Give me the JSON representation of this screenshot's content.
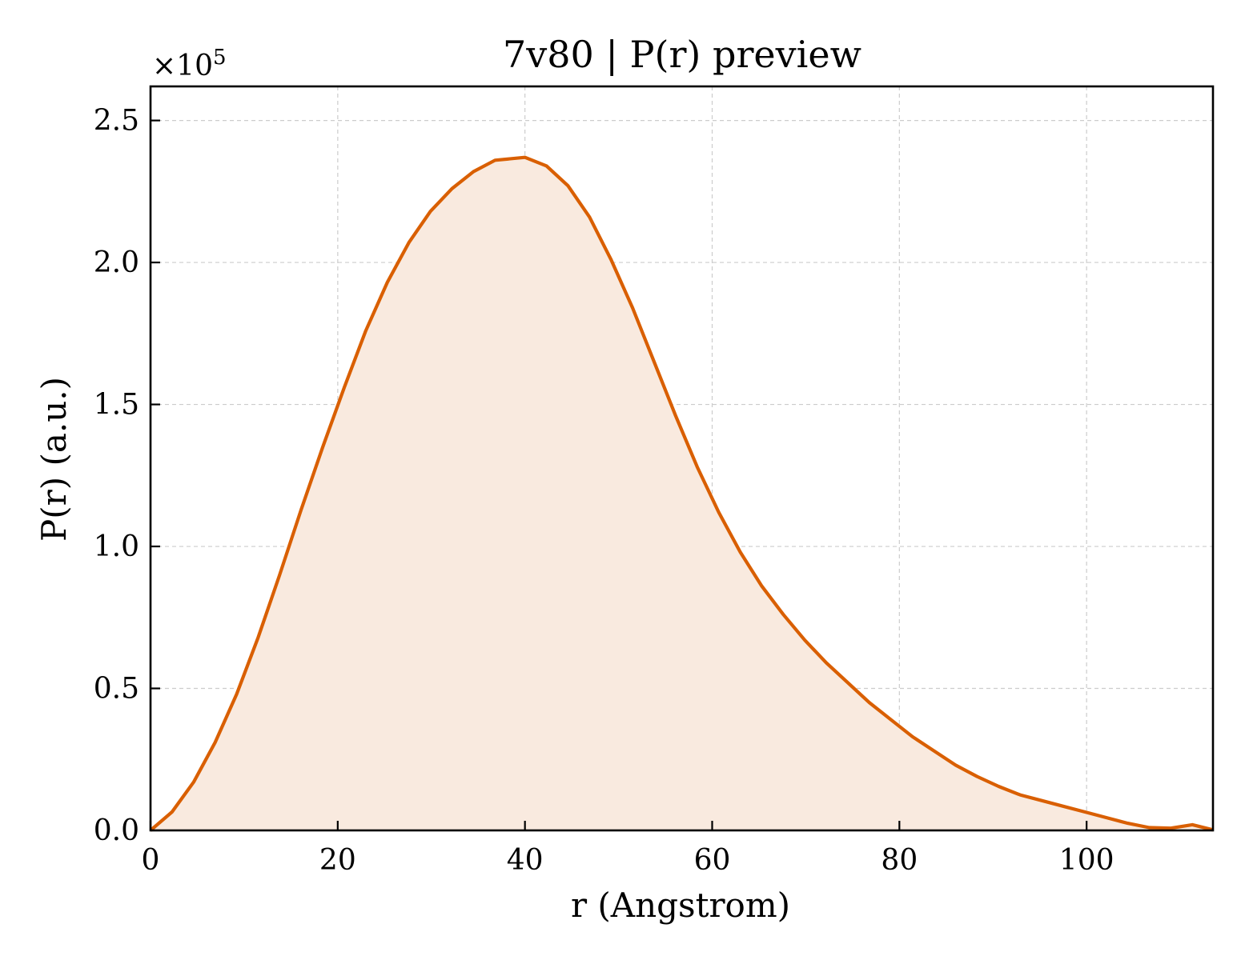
{
  "colors": {
    "line": "#d95f02",
    "fill": "#f9eadf",
    "background": "#ffffff"
  },
  "chart_data": {
    "type": "area",
    "title": "7v80 | P(r) preview",
    "xlabel": "r (Angstrom)",
    "ylabel": "P(r) (a.u.)",
    "y_multiplier": {
      "base": "×10",
      "exponent": "5"
    },
    "xlim": [
      0,
      113.5
    ],
    "ylim": [
      0,
      2.62
    ],
    "grid": true,
    "legend": "none",
    "x_ticks": [
      0,
      20,
      40,
      60,
      80,
      100
    ],
    "x_tick_labels": [
      "0",
      "20",
      "40",
      "60",
      "80",
      "100"
    ],
    "y_ticks": [
      0,
      0.5,
      1.0,
      1.5,
      2.0,
      2.5
    ],
    "y_tick_labels": [
      "0.0",
      "0.5",
      "1.0",
      "1.5",
      "2.0",
      "2.5"
    ],
    "series": [
      {
        "x": [
          0,
          2.3,
          4.6,
          6.9,
          9.2,
          11.5,
          13.8,
          16.1,
          18.4,
          20.7,
          23.0,
          25.3,
          27.6,
          29.9,
          32.2,
          34.5,
          36.8,
          40.0,
          42.3,
          44.6,
          46.9,
          49.2,
          51.5,
          53.8,
          56.1,
          58.4,
          60.7,
          63.0,
          65.3,
          67.6,
          69.9,
          72.2,
          74.5,
          76.8,
          79.1,
          81.4,
          83.7,
          86.0,
          88.3,
          90.6,
          92.9,
          95.2,
          97.5,
          99.8,
          102.1,
          104.4,
          106.7,
          109.0,
          111.3,
          113.5
        ],
        "y": [
          0.0,
          0.065,
          0.17,
          0.31,
          0.48,
          0.68,
          0.9,
          1.13,
          1.35,
          1.56,
          1.76,
          1.93,
          2.07,
          2.18,
          2.26,
          2.32,
          2.36,
          2.37,
          2.34,
          2.27,
          2.16,
          2.01,
          1.84,
          1.65,
          1.46,
          1.28,
          1.12,
          0.98,
          0.86,
          0.76,
          0.67,
          0.59,
          0.52,
          0.45,
          0.39,
          0.33,
          0.28,
          0.23,
          0.19,
          0.155,
          0.125,
          0.105,
          0.085,
          0.065,
          0.045,
          0.025,
          0.01,
          0.008,
          0.02,
          0.002
        ]
      }
    ]
  }
}
